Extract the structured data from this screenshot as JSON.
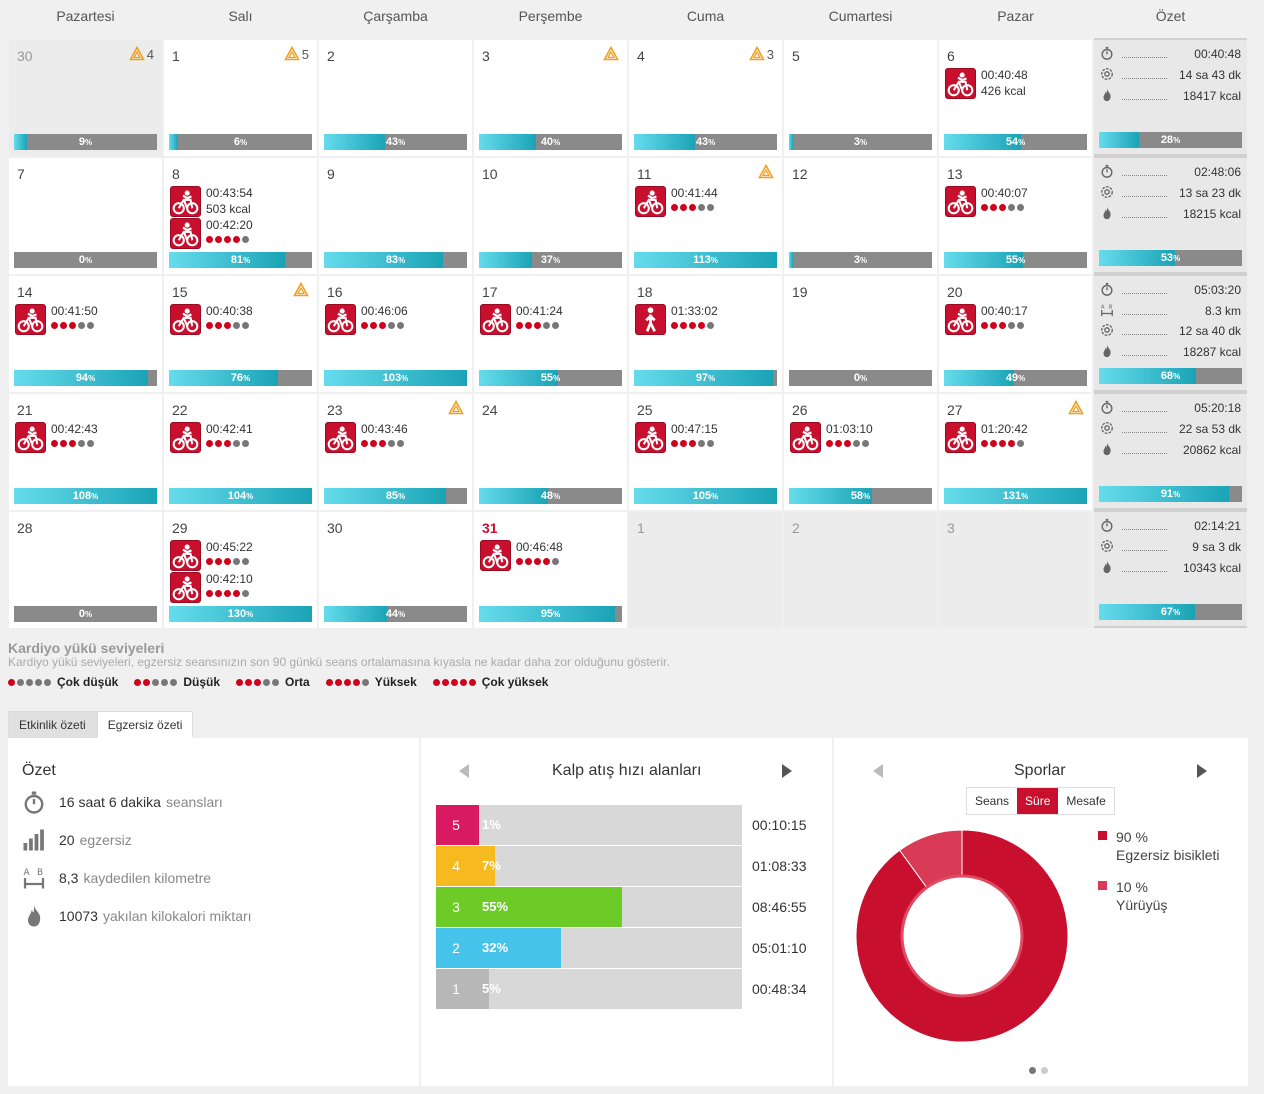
{
  "weekdays": [
    "Pazartesi",
    "Salı",
    "Çarşamba",
    "Perşembe",
    "Cuma",
    "Cumartesi",
    "Pazar",
    "Özet"
  ],
  "colors": {
    "accent": "#c8102e",
    "bar_fill": "#1aa3b6",
    "bar_bg": "#8a8a8a",
    "dot_on": "#d0021b",
    "dot_off": "#777777"
  },
  "weeks": [
    {
      "days": [
        {
          "num": "30",
          "muted": true,
          "warn": "4",
          "pct": "9",
          "pct_value": 9,
          "sessions": []
        },
        {
          "num": "1",
          "warn": "5",
          "pct": "6",
          "pct_value": 6,
          "sessions": []
        },
        {
          "num": "2",
          "pct": "43",
          "pct_value": 43,
          "sessions": []
        },
        {
          "num": "3",
          "warn": "",
          "pct": "40",
          "pct_value": 40,
          "sessions": []
        },
        {
          "num": "4",
          "warn": "3",
          "pct": "43",
          "pct_value": 43,
          "sessions": []
        },
        {
          "num": "5",
          "pct": "3",
          "pct_value": 3,
          "sessions": []
        },
        {
          "num": "6",
          "pct": "54",
          "pct_value": 54,
          "sessions": [
            {
              "type": "bike",
              "time": "00:40:48",
              "kcal": "426 kcal"
            }
          ]
        }
      ],
      "summary": {
        "rows": [
          {
            "icon": "stopwatch",
            "value": "00:40:48"
          },
          {
            "icon": "recovery",
            "value": "14 sa 43 dk"
          },
          {
            "icon": "flame",
            "value": "18417 kcal"
          }
        ],
        "pct": "28",
        "pct_value": 28
      }
    },
    {
      "days": [
        {
          "num": "7",
          "pct": "0",
          "pct_value": 0,
          "sessions": []
        },
        {
          "num": "8",
          "pct": "81",
          "pct_value": 81,
          "sessions": [
            {
              "type": "bike",
              "time": "00:43:54",
              "kcal": "503 kcal"
            },
            {
              "type": "bike",
              "time": "00:42:20",
              "level": 4
            }
          ]
        },
        {
          "num": "9",
          "pct": "83",
          "pct_value": 83,
          "sessions": []
        },
        {
          "num": "10",
          "pct": "37",
          "pct_value": 37,
          "sessions": []
        },
        {
          "num": "11",
          "warn": "",
          "pct": "113",
          "pct_value": 113,
          "sessions": [
            {
              "type": "bike",
              "time": "00:41:44",
              "level": 3
            }
          ]
        },
        {
          "num": "12",
          "pct": "3",
          "pct_value": 3,
          "sessions": []
        },
        {
          "num": "13",
          "pct": "55",
          "pct_value": 55,
          "sessions": [
            {
              "type": "bike",
              "time": "00:40:07",
              "level": 3
            }
          ]
        }
      ],
      "summary": {
        "rows": [
          {
            "icon": "stopwatch",
            "value": "02:48:06"
          },
          {
            "icon": "recovery",
            "value": "13 sa 23 dk"
          },
          {
            "icon": "flame",
            "value": "18215 kcal"
          }
        ],
        "pct": "53",
        "pct_value": 53
      }
    },
    {
      "days": [
        {
          "num": "14",
          "pct": "94",
          "pct_value": 94,
          "sessions": [
            {
              "type": "bike",
              "time": "00:41:50",
              "level": 3
            }
          ]
        },
        {
          "num": "15",
          "warn": "",
          "pct": "76",
          "pct_value": 76,
          "sessions": [
            {
              "type": "bike",
              "time": "00:40:38",
              "level": 3
            }
          ]
        },
        {
          "num": "16",
          "pct": "103",
          "pct_value": 103,
          "sessions": [
            {
              "type": "bike",
              "time": "00:46:06",
              "level": 3
            }
          ]
        },
        {
          "num": "17",
          "pct": "55",
          "pct_value": 55,
          "sessions": [
            {
              "type": "bike",
              "time": "00:41:24",
              "level": 3
            }
          ]
        },
        {
          "num": "18",
          "pct": "97",
          "pct_value": 97,
          "sessions": [
            {
              "type": "walk",
              "time": "01:33:02",
              "level": 4
            }
          ]
        },
        {
          "num": "19",
          "pct": "0",
          "pct_value": 0,
          "sessions": []
        },
        {
          "num": "20",
          "pct": "49",
          "pct_value": 49,
          "sessions": [
            {
              "type": "bike",
              "time": "00:40:17",
              "level": 3
            }
          ]
        }
      ],
      "summary": {
        "rows": [
          {
            "icon": "stopwatch",
            "value": "05:03:20"
          },
          {
            "icon": "distance",
            "value": "8.3 km"
          },
          {
            "icon": "recovery",
            "value": "12 sa 40 dk"
          },
          {
            "icon": "flame",
            "value": "18287 kcal"
          }
        ],
        "pct": "68",
        "pct_value": 68
      }
    },
    {
      "days": [
        {
          "num": "21",
          "pct": "108",
          "pct_value": 108,
          "sessions": [
            {
              "type": "bike",
              "time": "00:42:43",
              "level": 3
            }
          ]
        },
        {
          "num": "22",
          "pct": "104",
          "pct_value": 104,
          "sessions": [
            {
              "type": "bike",
              "time": "00:42:41",
              "level": 3
            }
          ]
        },
        {
          "num": "23",
          "warn": "",
          "pct": "85",
          "pct_value": 85,
          "sessions": [
            {
              "type": "bike",
              "time": "00:43:46",
              "level": 3
            }
          ]
        },
        {
          "num": "24",
          "pct": "48",
          "pct_value": 48,
          "sessions": []
        },
        {
          "num": "25",
          "pct": "105",
          "pct_value": 105,
          "sessions": [
            {
              "type": "bike",
              "time": "00:47:15",
              "level": 3
            }
          ]
        },
        {
          "num": "26",
          "pct": "58",
          "pct_value": 58,
          "sessions": [
            {
              "type": "bike",
              "time": "01:03:10",
              "level": 3
            }
          ]
        },
        {
          "num": "27",
          "warn": "",
          "pct": "131",
          "pct_value": 131,
          "sessions": [
            {
              "type": "bike",
              "time": "01:20:42",
              "level": 4
            }
          ]
        }
      ],
      "summary": {
        "rows": [
          {
            "icon": "stopwatch",
            "value": "05:20:18"
          },
          {
            "icon": "recovery",
            "value": "22 sa 53 dk"
          },
          {
            "icon": "flame",
            "value": "20862 kcal"
          }
        ],
        "pct": "91",
        "pct_value": 91
      }
    },
    {
      "days": [
        {
          "num": "28",
          "pct": "0",
          "pct_value": 0,
          "sessions": []
        },
        {
          "num": "29",
          "pct": "130",
          "pct_value": 130,
          "sessions": [
            {
              "type": "bike",
              "time": "00:45:22",
              "level": 3
            },
            {
              "type": "bike",
              "time": "00:42:10",
              "level": 4
            }
          ]
        },
        {
          "num": "30",
          "pct": "44",
          "pct_value": 44,
          "sessions": []
        },
        {
          "num": "31",
          "today": true,
          "pct": "95",
          "pct_value": 95,
          "sessions": [
            {
              "type": "bike",
              "time": "00:46:48",
              "level": 4
            }
          ]
        },
        {
          "num": "1",
          "muted": true,
          "sessions": []
        },
        {
          "num": "2",
          "muted": true,
          "sessions": []
        },
        {
          "num": "3",
          "muted": true,
          "sessions": []
        }
      ],
      "summary": {
        "rows": [
          {
            "icon": "stopwatch",
            "value": "02:14:21"
          },
          {
            "icon": "recovery",
            "value": "9 sa 3 dk"
          },
          {
            "icon": "flame",
            "value": "10343 kcal"
          }
        ],
        "pct": "67",
        "pct_value": 67
      }
    }
  ],
  "legend": {
    "title": "Kardiyo yükü seviyeleri",
    "subtitle": "Kardiyo yükü seviyeleri, egzersiz seansınızın son 90 günkü seans ortalamasına kıyasla ne kadar daha zor olduğunu gösterir.",
    "items": [
      {
        "label": "Çok düşük",
        "level": 1
      },
      {
        "label": "Düşük",
        "level": 2
      },
      {
        "label": "Orta",
        "level": 3
      },
      {
        "label": "Yüksek",
        "level": 4
      },
      {
        "label": "Çok yüksek",
        "level": 5
      }
    ]
  },
  "tabs": [
    {
      "label": "Etkinlik özeti"
    },
    {
      "label": "Egzersiz özeti",
      "active": true
    }
  ],
  "summary_panel": {
    "title": "Özet",
    "rows": [
      {
        "icon": "stopwatch",
        "value": "16 saat 6 dakika",
        "label": "seansları"
      },
      {
        "icon": "bars",
        "value": "20",
        "label": "egzersiz"
      },
      {
        "icon": "distance",
        "value": "8,3",
        "label": "kaydedilen kilometre"
      },
      {
        "icon": "flame",
        "value": "10073",
        "label": "yakılan kilokalori miktarı"
      }
    ]
  },
  "hr_panel": {
    "title": "Kalp atış hızı alanları",
    "zones": [
      {
        "zone": "5",
        "pct": "1%",
        "pct_value": 1,
        "time": "00:10:15",
        "color": "#d81b60"
      },
      {
        "zone": "4",
        "pct": "7%",
        "pct_value": 7,
        "time": "01:08:33",
        "color": "#f6b91e"
      },
      {
        "zone": "3",
        "pct": "55%",
        "pct_value": 55,
        "time": "08:46:55",
        "color": "#6dcb28"
      },
      {
        "zone": "2",
        "pct": "32%",
        "pct_value": 32,
        "time": "05:01:10",
        "color": "#45c3ea"
      },
      {
        "zone": "1",
        "pct": "5%",
        "pct_value": 5,
        "time": "00:48:34",
        "color": "#b8b8b8"
      }
    ]
  },
  "sports_panel": {
    "title": "Sporlar",
    "toggle": [
      {
        "label": "Seans"
      },
      {
        "label": "Süre",
        "active": true
      },
      {
        "label": "Mesafe"
      }
    ],
    "items": [
      {
        "pct": "90 %",
        "pct_value": 90,
        "name": "Egzersiz bisikleti",
        "color": "#c8102e"
      },
      {
        "pct": "10 %",
        "pct_value": 10,
        "name": "Yürüyüş",
        "color": "#d93a55"
      }
    ]
  }
}
